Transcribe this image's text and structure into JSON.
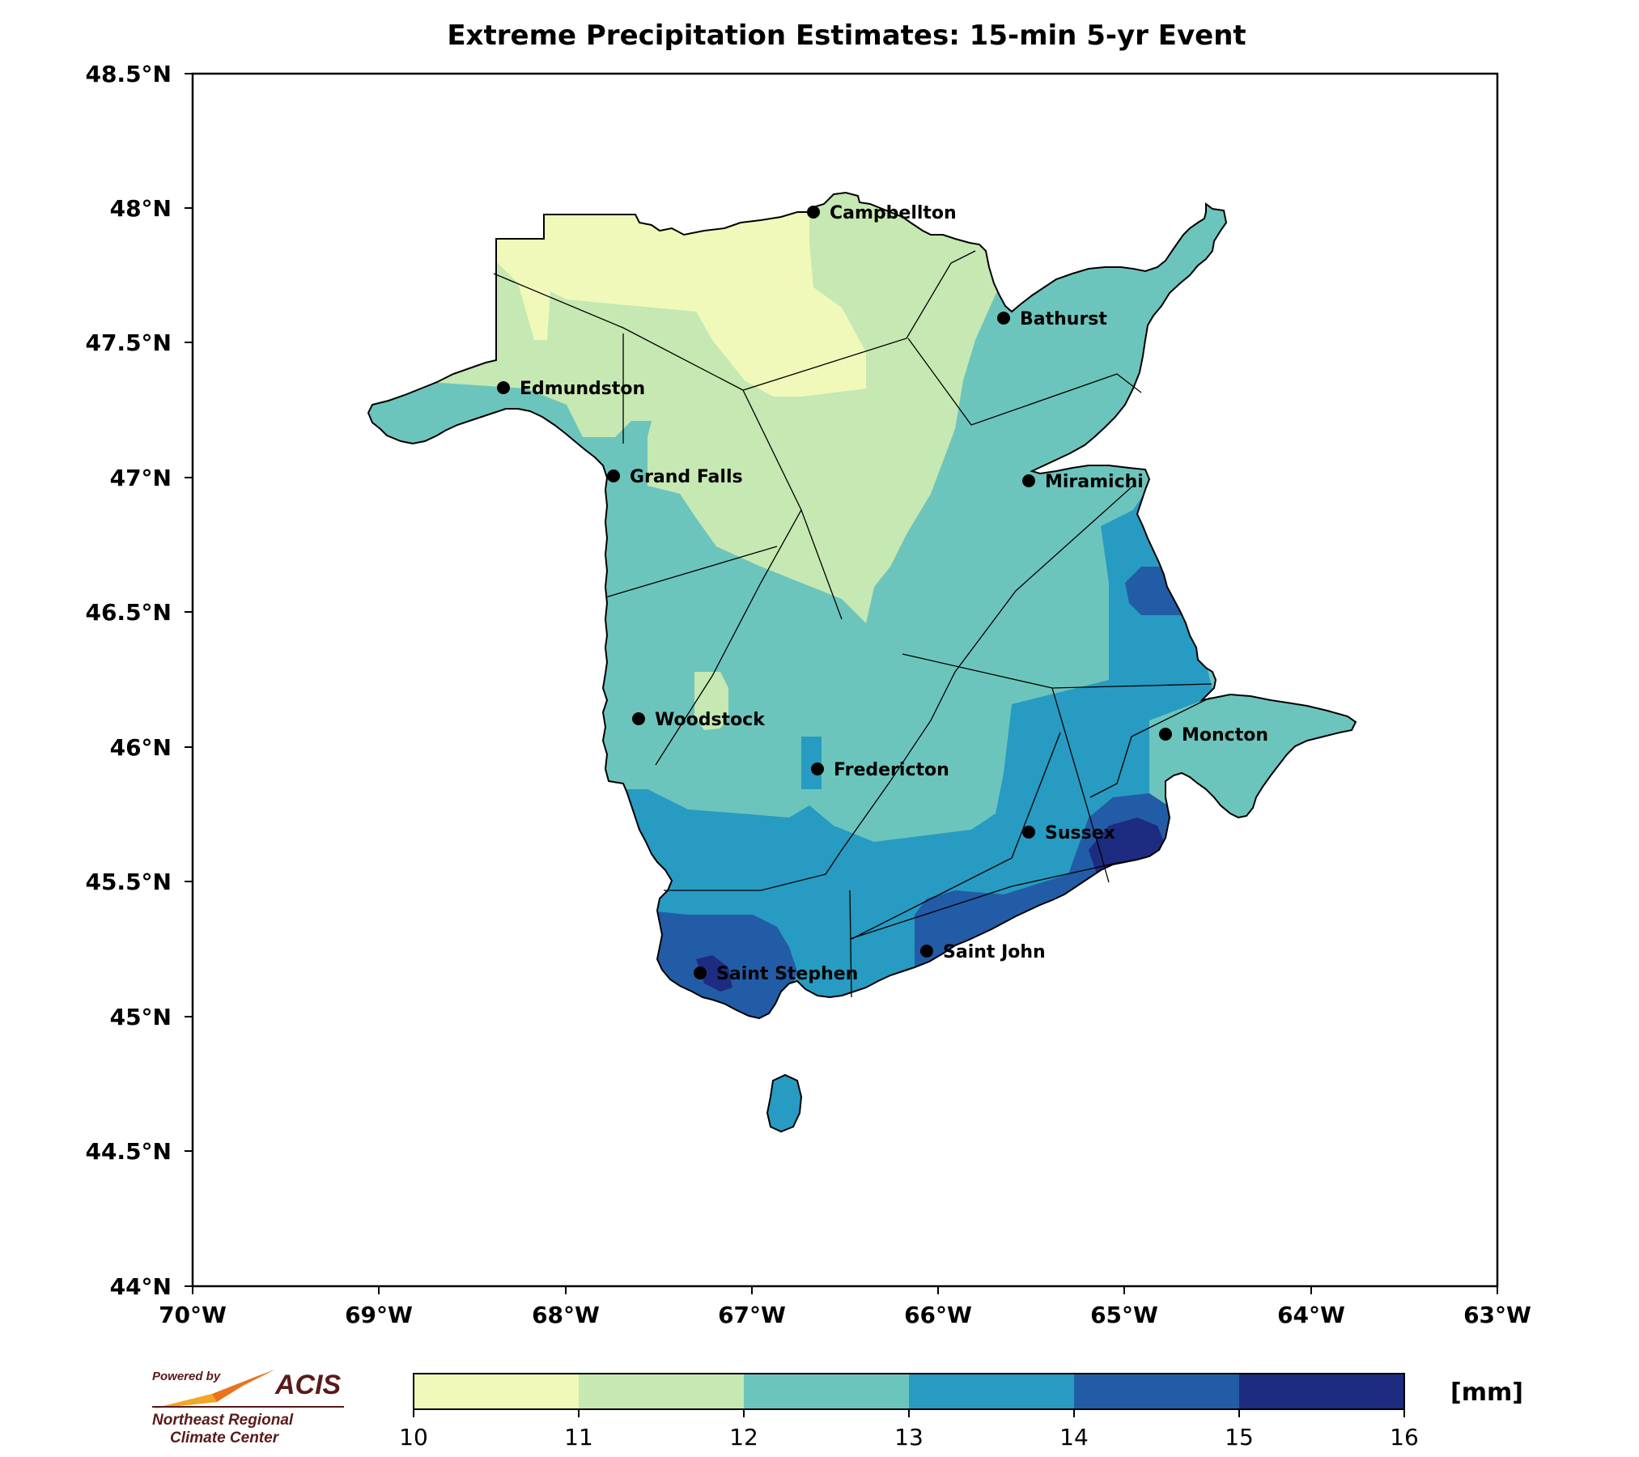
{
  "title": "Extreme Precipitation Estimates: 15-min 5-yr Event",
  "lat_ticks": [
    "48.5°N",
    "48°N",
    "47.5°N",
    "47°N",
    "46.5°N",
    "46°N",
    "45.5°N",
    "45°N",
    "44.5°N",
    "44°N"
  ],
  "lon_ticks": [
    "70°W",
    "69°W",
    "68°W",
    "67°W",
    "66°W",
    "65°W",
    "64°W",
    "63°W"
  ],
  "cities": [
    {
      "name": "Campbellton"
    },
    {
      "name": "Bathurst"
    },
    {
      "name": "Edmundston"
    },
    {
      "name": "Grand Falls"
    },
    {
      "name": "Miramichi"
    },
    {
      "name": "Woodstock"
    },
    {
      "name": "Fredericton"
    },
    {
      "name": "Moncton"
    },
    {
      "name": "Sussex"
    },
    {
      "name": "Saint John"
    },
    {
      "name": "Saint Stephen"
    }
  ],
  "colorbar": {
    "unit": "[mm]",
    "ticks": [
      "10",
      "11",
      "12",
      "13",
      "14",
      "15",
      "16"
    ],
    "colors": [
      "#f0f9b9",
      "#c6e8b2",
      "#6cc5bc",
      "#279bc2",
      "#225ca6",
      "#1d2c80"
    ]
  },
  "logo": {
    "powered": "Powered by",
    "acis": "ACIS",
    "line1": "Northeast Regional",
    "line2": "Climate Center"
  }
}
